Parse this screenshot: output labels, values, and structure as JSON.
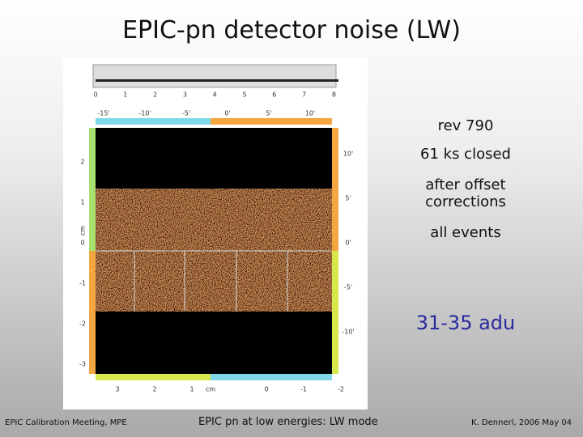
{
  "header": {
    "title": "EPIC-pn detector noise  (LW)"
  },
  "notes": [
    "rev 790",
    "61 ks closed",
    "after offset corrections",
    "all events"
  ],
  "highlight": "31-35 adu",
  "figure": {
    "histogram_ticks": [
      "0",
      "1",
      "2",
      "3",
      "4",
      "5",
      "6",
      "7",
      "8"
    ],
    "top_arcmin_ticks": [
      "-15'",
      "-10'",
      "-5'",
      "0'",
      "5'",
      "10'"
    ],
    "left_cm_ticks": [
      "2",
      "1",
      "0",
      "-1",
      "-2",
      "-3"
    ],
    "right_arcmin_ticks": [
      "10'",
      "5'",
      "0'",
      "-5'",
      "-10'"
    ],
    "bottom_cm_ticks": [
      "3",
      "2",
      "1",
      "0",
      "-1",
      "-2"
    ],
    "unit": "cm"
  },
  "footer": {
    "left": "EPIC Calibration Meeting, MPE",
    "center": "EPIC pn at low energies: LW mode",
    "right": "K. Dennerl, 2006 May 04"
  }
}
